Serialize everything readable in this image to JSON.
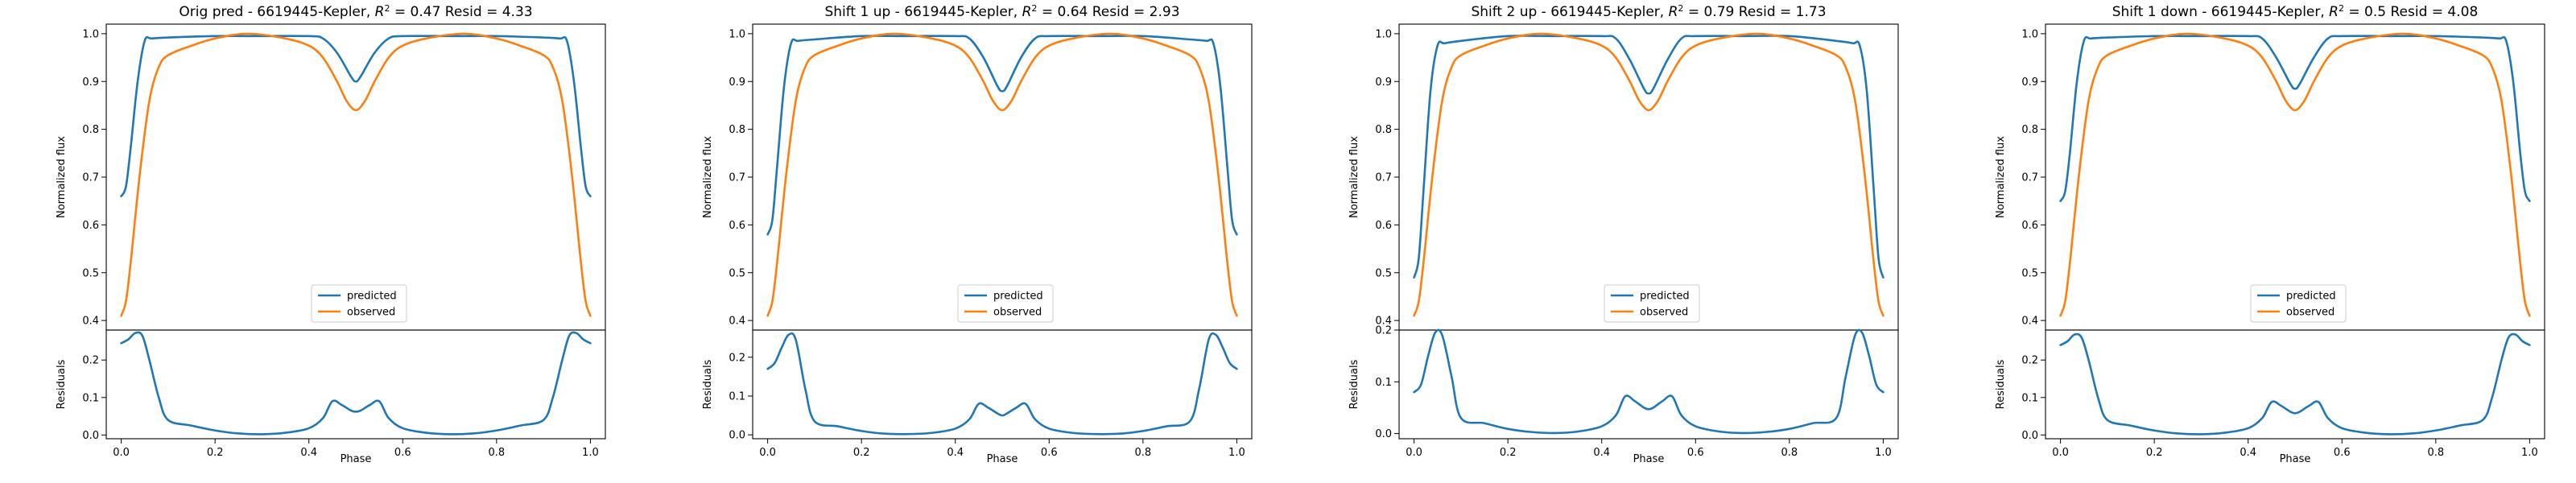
{
  "chart_data": [
    {
      "type": "line",
      "title_text": "Orig pred - 6619445-Kepler, ",
      "r2_value": "0.47",
      "resid_text": " Resid = 4.33",
      "xlabel": "Phase",
      "ylabel_top": "Normalized flux",
      "ylabel_bottom": "Residuals",
      "xlim": [
        0,
        1
      ],
      "ylim_top": [
        0.38,
        1.02
      ],
      "ylim_bottom": [
        -0.01,
        0.28
      ],
      "xticks": [
        "0.0",
        "0.2",
        "0.4",
        "0.6",
        "0.8",
        "1.0"
      ],
      "yticks_top": [
        "0.4",
        "0.5",
        "0.6",
        "0.7",
        "0.8",
        "0.9",
        "1.0"
      ],
      "yticks_bottom": [
        "0.0",
        "0.1",
        "0.2"
      ],
      "legend": [
        "predicted",
        "observed"
      ],
      "legend_position": "lower center",
      "series": [
        {
          "name": "predicted",
          "color": "#1f77b4",
          "x": [
            0,
            0.01,
            0.02,
            0.035,
            0.05,
            0.065,
            0.1,
            0.2,
            0.3,
            0.4,
            0.43,
            0.46,
            0.49,
            0.5,
            0.51,
            0.54,
            0.57,
            0.6,
            0.7,
            0.8,
            0.9,
            0.935,
            0.95,
            0.965,
            0.98,
            0.99,
            1.0
          ],
          "y": [
            0.66,
            0.68,
            0.76,
            0.9,
            0.985,
            0.99,
            0.992,
            0.995,
            0.995,
            0.995,
            0.99,
            0.96,
            0.91,
            0.9,
            0.91,
            0.96,
            0.99,
            0.995,
            0.995,
            0.995,
            0.992,
            0.99,
            0.985,
            0.9,
            0.76,
            0.68,
            0.66
          ]
        },
        {
          "name": "observed",
          "color": "#ff7f0e",
          "x": [
            0,
            0.01,
            0.02,
            0.04,
            0.06,
            0.08,
            0.1,
            0.15,
            0.2,
            0.27,
            0.35,
            0.4,
            0.43,
            0.46,
            0.48,
            0.5,
            0.52,
            0.54,
            0.57,
            0.6,
            0.65,
            0.73,
            0.8,
            0.85,
            0.9,
            0.92,
            0.94,
            0.96,
            0.98,
            0.99,
            1.0
          ],
          "y": [
            0.41,
            0.44,
            0.52,
            0.71,
            0.86,
            0.93,
            0.955,
            0.975,
            0.99,
            1.0,
            0.99,
            0.975,
            0.95,
            0.9,
            0.86,
            0.84,
            0.86,
            0.9,
            0.95,
            0.975,
            0.99,
            1.0,
            0.99,
            0.975,
            0.955,
            0.93,
            0.86,
            0.71,
            0.52,
            0.44,
            0.41
          ]
        },
        {
          "name": "residual",
          "color": "#1f77b4",
          "x": [
            0,
            0.015,
            0.03,
            0.045,
            0.06,
            0.08,
            0.1,
            0.15,
            0.2,
            0.25,
            0.3,
            0.35,
            0.4,
            0.43,
            0.45,
            0.47,
            0.49,
            0.5,
            0.51,
            0.53,
            0.55,
            0.57,
            0.6,
            0.65,
            0.7,
            0.75,
            0.8,
            0.85,
            0.9,
            0.92,
            0.94,
            0.955,
            0.97,
            0.985,
            1.0
          ],
          "y": [
            0.245,
            0.255,
            0.272,
            0.265,
            0.2,
            0.1,
            0.04,
            0.025,
            0.012,
            0.004,
            0.002,
            0.006,
            0.018,
            0.045,
            0.09,
            0.08,
            0.065,
            0.062,
            0.065,
            0.08,
            0.09,
            0.045,
            0.018,
            0.006,
            0.002,
            0.004,
            0.012,
            0.025,
            0.04,
            0.1,
            0.2,
            0.265,
            0.272,
            0.255,
            0.245
          ]
        }
      ]
    },
    {
      "type": "line",
      "title_text": "Shift 1 up - 6619445-Kepler, ",
      "r2_value": "0.64",
      "resid_text": " Resid = 2.93",
      "xlabel": "Phase",
      "ylabel_top": "Normalized flux",
      "ylabel_bottom": "Residuals",
      "xlim": [
        0,
        1
      ],
      "ylim_top": [
        0.38,
        1.02
      ],
      "ylim_bottom": [
        -0.01,
        0.27
      ],
      "xticks": [
        "0.0",
        "0.2",
        "0.4",
        "0.6",
        "0.8",
        "1.0"
      ],
      "yticks_top": [
        "0.4",
        "0.5",
        "0.6",
        "0.7",
        "0.8",
        "0.9",
        "1.0"
      ],
      "yticks_bottom": [
        "0.0",
        "0.1",
        "0.2"
      ],
      "legend": [
        "predicted",
        "observed"
      ],
      "legend_position": "lower center",
      "series": [
        {
          "name": "predicted",
          "color": "#1f77b4",
          "x": [
            0,
            0.01,
            0.02,
            0.035,
            0.05,
            0.065,
            0.1,
            0.2,
            0.3,
            0.4,
            0.43,
            0.46,
            0.49,
            0.5,
            0.51,
            0.54,
            0.57,
            0.6,
            0.7,
            0.8,
            0.9,
            0.935,
            0.95,
            0.965,
            0.98,
            0.99,
            1.0
          ],
          "y": [
            0.58,
            0.61,
            0.72,
            0.89,
            0.98,
            0.985,
            0.988,
            0.995,
            0.995,
            0.995,
            0.99,
            0.95,
            0.89,
            0.88,
            0.89,
            0.95,
            0.99,
            0.995,
            0.995,
            0.995,
            0.988,
            0.985,
            0.98,
            0.89,
            0.72,
            0.61,
            0.58
          ]
        },
        {
          "name": "observed",
          "color": "#ff7f0e",
          "x": [
            0,
            0.01,
            0.02,
            0.04,
            0.06,
            0.08,
            0.1,
            0.15,
            0.2,
            0.27,
            0.35,
            0.4,
            0.43,
            0.46,
            0.48,
            0.5,
            0.52,
            0.54,
            0.57,
            0.6,
            0.65,
            0.73,
            0.8,
            0.85,
            0.9,
            0.92,
            0.94,
            0.96,
            0.98,
            0.99,
            1.0
          ],
          "y": [
            0.41,
            0.44,
            0.52,
            0.71,
            0.86,
            0.93,
            0.955,
            0.975,
            0.99,
            1.0,
            0.99,
            0.975,
            0.95,
            0.9,
            0.86,
            0.84,
            0.86,
            0.9,
            0.95,
            0.975,
            0.99,
            1.0,
            0.99,
            0.975,
            0.955,
            0.93,
            0.86,
            0.71,
            0.52,
            0.44,
            0.41
          ]
        },
        {
          "name": "residual",
          "color": "#1f77b4",
          "x": [
            0,
            0.015,
            0.03,
            0.045,
            0.06,
            0.08,
            0.1,
            0.15,
            0.2,
            0.25,
            0.3,
            0.35,
            0.4,
            0.43,
            0.45,
            0.47,
            0.49,
            0.5,
            0.51,
            0.53,
            0.55,
            0.57,
            0.6,
            0.65,
            0.7,
            0.75,
            0.8,
            0.85,
            0.9,
            0.92,
            0.94,
            0.955,
            0.97,
            0.985,
            1.0
          ],
          "y": [
            0.17,
            0.185,
            0.225,
            0.258,
            0.245,
            0.12,
            0.035,
            0.022,
            0.01,
            0.003,
            0.002,
            0.005,
            0.016,
            0.04,
            0.08,
            0.07,
            0.055,
            0.05,
            0.055,
            0.07,
            0.08,
            0.04,
            0.016,
            0.005,
            0.002,
            0.003,
            0.01,
            0.022,
            0.035,
            0.12,
            0.245,
            0.258,
            0.225,
            0.185,
            0.17
          ]
        }
      ]
    },
    {
      "type": "line",
      "title_text": "Shift 2 up - 6619445-Kepler, ",
      "r2_value": "0.79",
      "resid_text": " Resid = 1.73",
      "xlabel": "Phase",
      "ylabel_top": "Normalized flux",
      "ylabel_bottom": "Residuals",
      "xlim": [
        0,
        1
      ],
      "ylim_top": [
        0.38,
        1.02
      ],
      "ylim_bottom": [
        -0.01,
        0.2
      ],
      "xticks": [
        "0.0",
        "0.2",
        "0.4",
        "0.6",
        "0.8",
        "1.0"
      ],
      "yticks_top": [
        "0.4",
        "0.5",
        "0.6",
        "0.7",
        "0.8",
        "0.9",
        "1.0"
      ],
      "yticks_bottom": [
        "0.0",
        "0.1",
        "0.2"
      ],
      "legend": [
        "predicted",
        "observed"
      ],
      "legend_position": "lower center",
      "series": [
        {
          "name": "predicted",
          "color": "#1f77b4",
          "x": [
            0,
            0.01,
            0.02,
            0.035,
            0.05,
            0.065,
            0.1,
            0.2,
            0.3,
            0.4,
            0.43,
            0.46,
            0.49,
            0.5,
            0.51,
            0.54,
            0.57,
            0.6,
            0.7,
            0.8,
            0.9,
            0.935,
            0.95,
            0.965,
            0.98,
            0.99,
            1.0
          ],
          "y": [
            0.49,
            0.53,
            0.67,
            0.88,
            0.975,
            0.98,
            0.985,
            0.995,
            0.995,
            0.995,
            0.99,
            0.945,
            0.885,
            0.875,
            0.885,
            0.945,
            0.99,
            0.995,
            0.995,
            0.995,
            0.985,
            0.98,
            0.975,
            0.88,
            0.67,
            0.53,
            0.49
          ]
        },
        {
          "name": "observed",
          "color": "#ff7f0e",
          "x": [
            0,
            0.01,
            0.02,
            0.04,
            0.06,
            0.08,
            0.1,
            0.15,
            0.2,
            0.27,
            0.35,
            0.4,
            0.43,
            0.46,
            0.48,
            0.5,
            0.52,
            0.54,
            0.57,
            0.6,
            0.65,
            0.73,
            0.8,
            0.85,
            0.9,
            0.92,
            0.94,
            0.96,
            0.98,
            0.99,
            1.0
          ],
          "y": [
            0.41,
            0.44,
            0.52,
            0.71,
            0.86,
            0.93,
            0.955,
            0.975,
            0.99,
            1.0,
            0.99,
            0.975,
            0.95,
            0.9,
            0.86,
            0.84,
            0.86,
            0.9,
            0.95,
            0.975,
            0.99,
            1.0,
            0.99,
            0.975,
            0.955,
            0.93,
            0.86,
            0.71,
            0.52,
            0.44,
            0.41
          ]
        },
        {
          "name": "residual",
          "color": "#1f77b4",
          "x": [
            0,
            0.015,
            0.03,
            0.045,
            0.06,
            0.08,
            0.1,
            0.15,
            0.2,
            0.25,
            0.3,
            0.35,
            0.4,
            0.43,
            0.45,
            0.47,
            0.49,
            0.5,
            0.51,
            0.53,
            0.55,
            0.57,
            0.6,
            0.65,
            0.7,
            0.75,
            0.8,
            0.85,
            0.9,
            0.92,
            0.94,
            0.955,
            0.97,
            0.985,
            1.0
          ],
          "y": [
            0.08,
            0.095,
            0.15,
            0.195,
            0.19,
            0.11,
            0.03,
            0.02,
            0.009,
            0.003,
            0.001,
            0.004,
            0.014,
            0.035,
            0.072,
            0.063,
            0.05,
            0.047,
            0.05,
            0.063,
            0.072,
            0.035,
            0.014,
            0.004,
            0.001,
            0.003,
            0.009,
            0.02,
            0.03,
            0.11,
            0.19,
            0.195,
            0.15,
            0.095,
            0.08
          ]
        }
      ]
    },
    {
      "type": "line",
      "title_text": "Shift 1 down - 6619445-Kepler, ",
      "r2_value": "0.5",
      "resid_text": " Resid = 4.08",
      "xlabel": "Phase",
      "ylabel_top": "Normalized flux",
      "ylabel_bottom": "Residuals",
      "xlim": [
        0,
        1
      ],
      "ylim_top": [
        0.38,
        1.02
      ],
      "ylim_bottom": [
        -0.01,
        0.28
      ],
      "xticks": [
        "0.0",
        "0.2",
        "0.4",
        "0.6",
        "0.8",
        "1.0"
      ],
      "yticks_top": [
        "0.4",
        "0.5",
        "0.6",
        "0.7",
        "0.8",
        "0.9",
        "1.0"
      ],
      "yticks_bottom": [
        "0.0",
        "0.1",
        "0.2"
      ],
      "legend": [
        "predicted",
        "observed"
      ],
      "legend_position": "lower center",
      "series": [
        {
          "name": "predicted",
          "color": "#1f77b4",
          "x": [
            0,
            0.01,
            0.02,
            0.035,
            0.05,
            0.065,
            0.1,
            0.2,
            0.3,
            0.4,
            0.43,
            0.46,
            0.49,
            0.5,
            0.51,
            0.54,
            0.57,
            0.6,
            0.7,
            0.8,
            0.9,
            0.935,
            0.95,
            0.965,
            0.98,
            0.99,
            1.0
          ],
          "y": [
            0.65,
            0.67,
            0.75,
            0.9,
            0.985,
            0.99,
            0.992,
            0.995,
            0.995,
            0.995,
            0.99,
            0.95,
            0.895,
            0.885,
            0.895,
            0.95,
            0.99,
            0.995,
            0.995,
            0.995,
            0.992,
            0.99,
            0.985,
            0.9,
            0.75,
            0.67,
            0.65
          ]
        },
        {
          "name": "observed",
          "color": "#ff7f0e",
          "x": [
            0,
            0.01,
            0.02,
            0.04,
            0.06,
            0.08,
            0.1,
            0.15,
            0.2,
            0.27,
            0.35,
            0.4,
            0.43,
            0.46,
            0.48,
            0.5,
            0.52,
            0.54,
            0.57,
            0.6,
            0.65,
            0.73,
            0.8,
            0.85,
            0.9,
            0.92,
            0.94,
            0.96,
            0.98,
            0.99,
            1.0
          ],
          "y": [
            0.41,
            0.44,
            0.52,
            0.71,
            0.86,
            0.93,
            0.955,
            0.975,
            0.99,
            1.0,
            0.99,
            0.975,
            0.95,
            0.9,
            0.86,
            0.84,
            0.86,
            0.9,
            0.95,
            0.975,
            0.99,
            1.0,
            0.99,
            0.975,
            0.955,
            0.93,
            0.86,
            0.71,
            0.52,
            0.44,
            0.41
          ]
        },
        {
          "name": "residual",
          "color": "#1f77b4",
          "x": [
            0,
            0.015,
            0.03,
            0.045,
            0.06,
            0.08,
            0.1,
            0.15,
            0.2,
            0.25,
            0.3,
            0.35,
            0.4,
            0.43,
            0.45,
            0.47,
            0.49,
            0.5,
            0.51,
            0.53,
            0.55,
            0.57,
            0.6,
            0.65,
            0.7,
            0.75,
            0.8,
            0.85,
            0.9,
            0.92,
            0.94,
            0.955,
            0.97,
            0.985,
            1.0
          ],
          "y": [
            0.24,
            0.25,
            0.268,
            0.26,
            0.2,
            0.1,
            0.04,
            0.025,
            0.012,
            0.004,
            0.002,
            0.006,
            0.018,
            0.045,
            0.088,
            0.078,
            0.062,
            0.058,
            0.062,
            0.078,
            0.088,
            0.045,
            0.018,
            0.006,
            0.002,
            0.004,
            0.012,
            0.025,
            0.04,
            0.1,
            0.2,
            0.26,
            0.268,
            0.25,
            0.24
          ]
        }
      ]
    }
  ]
}
